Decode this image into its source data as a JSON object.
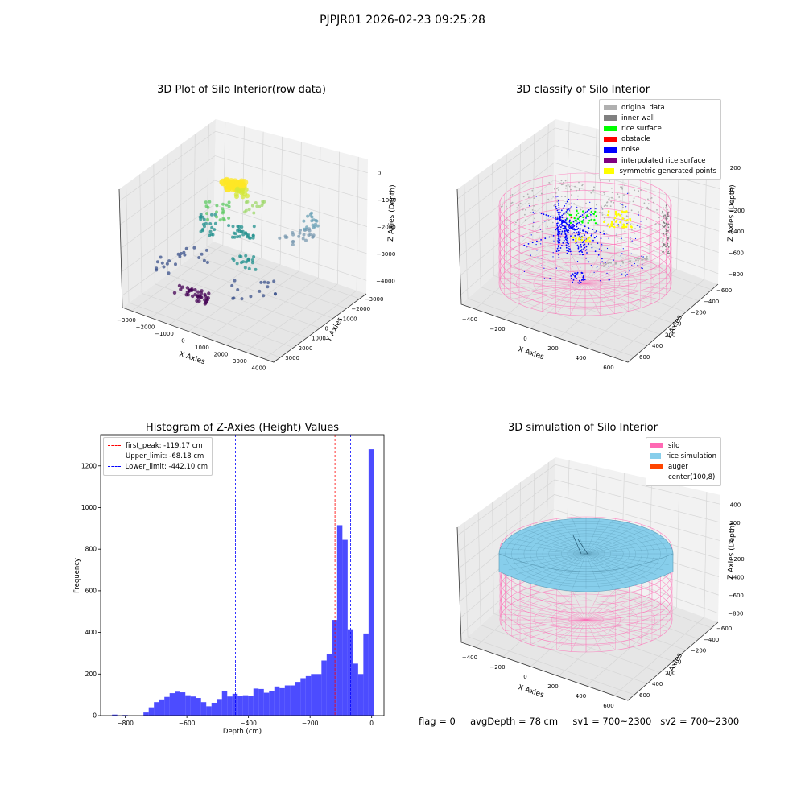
{
  "suptitle": "PJPJR01 2026-02-23 09:25:28",
  "footer": "flag = 0     avgDepth = 78 cm     sv1 = 700~2300   sv2 = 700~2300",
  "colors": {
    "viridis": [
      "#440154",
      "#3b528b",
      "#21908d",
      "#5dc963",
      "#fde725"
    ],
    "legend_silver": "#b0b0b0",
    "legend_gray": "#808080",
    "legend_green": "#00ff00",
    "legend_red": "#ff0000",
    "legend_blue": "#0000ff",
    "legend_purple": "#800080",
    "legend_yellow": "#ffff00",
    "silo_pink": "#ff69b4",
    "rice_blue": "#87ceeb",
    "auger_orange": "#ff4500",
    "hist_blue": "#0000ff"
  },
  "chart_data": [
    {
      "type": "scatter3d",
      "title": "3D Plot of Silo Interior(row data)",
      "xlabel": "X Axies",
      "ylabel": "Y Axies",
      "zlabel": "Z Axies (Depth)",
      "xticks": [
        "−3000",
        "−2000",
        "−1000",
        "0",
        "1000",
        "2000",
        "3000",
        "4000"
      ],
      "yticks": [
        "−3000",
        "−2000",
        "−1000",
        "0",
        "1000",
        "2000",
        "3000"
      ],
      "zticks": [
        "0",
        "−1000",
        "−2000",
        "−3000",
        "−4000"
      ],
      "colormap": "viridis"
    },
    {
      "type": "scatter3d",
      "title": "3D classify of Silo Interior",
      "xlabel": "X Axies",
      "ylabel": "Y Axies",
      "zlabel": "Z Axies (Depth)",
      "xticks": [
        "−400",
        "−200",
        "0",
        "200",
        "400",
        "600"
      ],
      "yticks": [
        "−600",
        "−400",
        "−200",
        "0",
        "200",
        "400",
        "600"
      ],
      "zticks": [
        "200",
        "0",
        "−200",
        "−400",
        "−600",
        "−800"
      ],
      "legend": [
        {
          "label": "original data",
          "color": "#b0b0b0"
        },
        {
          "label": "inner wall",
          "color": "#808080"
        },
        {
          "label": "rice surface",
          "color": "#00ff00"
        },
        {
          "label": "obstacle",
          "color": "#ff0000"
        },
        {
          "label": "noise",
          "color": "#0000ff"
        },
        {
          "label": "interpolated rice surface",
          "color": "#800080"
        },
        {
          "label": "symmetric generated points",
          "color": "#ffff00"
        }
      ]
    },
    {
      "type": "bar",
      "title": "Histogram of Z-Axies (Height) Values",
      "xlabel": "Depth (cm)",
      "ylabel": "Frequency",
      "xlim": [
        -880,
        40
      ],
      "ylim": [
        0,
        1350
      ],
      "xticks": [
        "−800",
        "−600",
        "−400",
        "−200",
        "0"
      ],
      "yticks": [
        "0",
        "200",
        "400",
        "600",
        "800",
        "1000",
        "1200"
      ],
      "bin_start": -860,
      "bin_width": 17,
      "values": [
        0,
        5,
        0,
        3,
        0,
        0,
        0,
        15,
        40,
        65,
        78,
        90,
        108,
        115,
        112,
        98,
        92,
        85,
        65,
        45,
        62,
        80,
        120,
        92,
        105,
        95,
        98,
        95,
        130,
        128,
        110,
        120,
        140,
        132,
        145,
        145,
        162,
        180,
        190,
        200,
        200,
        265,
        295,
        460,
        915,
        845,
        415,
        250,
        200,
        395,
        1280
      ],
      "vlines": [
        {
          "label": "first_peak: -119.17 cm",
          "x": -119.17,
          "color": "#ff0000"
        },
        {
          "label": "Upper_limit: -68.18 cm",
          "x": -68.18,
          "color": "#0000ff"
        },
        {
          "label": "Lower_limit: -442.10 cm",
          "x": -442.1,
          "color": "#0000ff"
        }
      ]
    },
    {
      "type": "surface3d",
      "title": "3D simulation of Silo Interior",
      "xlabel": "X Axies",
      "ylabel": "Y Axies",
      "zlabel": "Z Axies (Depth)",
      "xticks": [
        "−400",
        "−200",
        "0",
        "200",
        "400",
        "600"
      ],
      "yticks": [
        "−600",
        "−400",
        "−200",
        "0",
        "200",
        "400",
        "600"
      ],
      "zticks": [
        "400",
        "200",
        "0",
        "−200",
        "−400",
        "−600",
        "−800"
      ],
      "legend": [
        {
          "label": "silo",
          "color": "#ff69b4"
        },
        {
          "label": "rice simulation",
          "color": "#87ceeb"
        },
        {
          "label": "auger",
          "color": "#ff4500"
        },
        {
          "label": "center(100,8)",
          "color": "#ffffff"
        }
      ]
    }
  ]
}
